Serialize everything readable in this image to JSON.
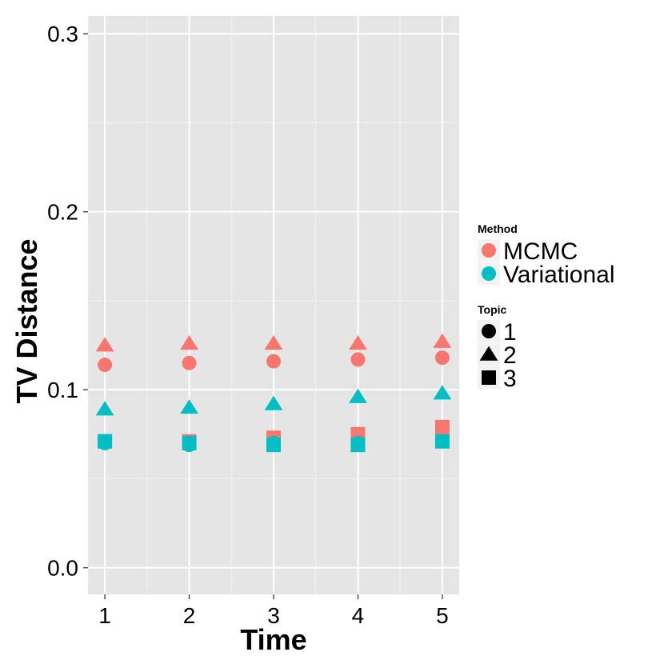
{
  "chart_data": {
    "type": "scatter",
    "title": "",
    "xlabel": "Time",
    "ylabel": "TV Distance",
    "x": [
      1,
      2,
      3,
      4,
      5
    ],
    "x_ticks": [
      "1",
      "2",
      "3",
      "4",
      "5"
    ],
    "ylim": [
      -0.015,
      0.31
    ],
    "y_ticks": [
      "0.0",
      "0.1",
      "0.2",
      "0.3"
    ],
    "grid": true,
    "legend_position": "right",
    "series": [
      {
        "method": "MCMC",
        "topic": "1",
        "shape": "circle",
        "color": "#F8766D",
        "values": [
          0.114,
          0.115,
          0.116,
          0.117,
          0.118
        ]
      },
      {
        "method": "MCMC",
        "topic": "2",
        "shape": "triangle",
        "color": "#F8766D",
        "values": [
          0.125,
          0.126,
          0.126,
          0.126,
          0.127
        ]
      },
      {
        "method": "MCMC",
        "topic": "3",
        "shape": "square",
        "color": "#F8766D",
        "values": [
          0.071,
          0.071,
          0.073,
          0.075,
          0.079
        ]
      },
      {
        "method": "Variational",
        "topic": "1",
        "shape": "circle",
        "color": "#00BFC4",
        "values": [
          0.07,
          0.069,
          0.07,
          0.07,
          0.071
        ]
      },
      {
        "method": "Variational",
        "topic": "2",
        "shape": "triangle",
        "color": "#00BFC4",
        "values": [
          0.089,
          0.09,
          0.092,
          0.096,
          0.098
        ]
      },
      {
        "method": "Variational",
        "topic": "3",
        "shape": "square",
        "color": "#00BFC4",
        "values": [
          0.071,
          0.07,
          0.069,
          0.069,
          0.071
        ]
      }
    ],
    "legend": {
      "method_title": "Method",
      "method_items": [
        {
          "label": "MCMC",
          "color": "#F8766D"
        },
        {
          "label": "Variational",
          "color": "#00BFC4"
        }
      ],
      "topic_title": "Topic",
      "topic_items": [
        {
          "label": "1",
          "shape": "circle"
        },
        {
          "label": "2",
          "shape": "triangle"
        },
        {
          "label": "3",
          "shape": "square"
        }
      ]
    }
  }
}
